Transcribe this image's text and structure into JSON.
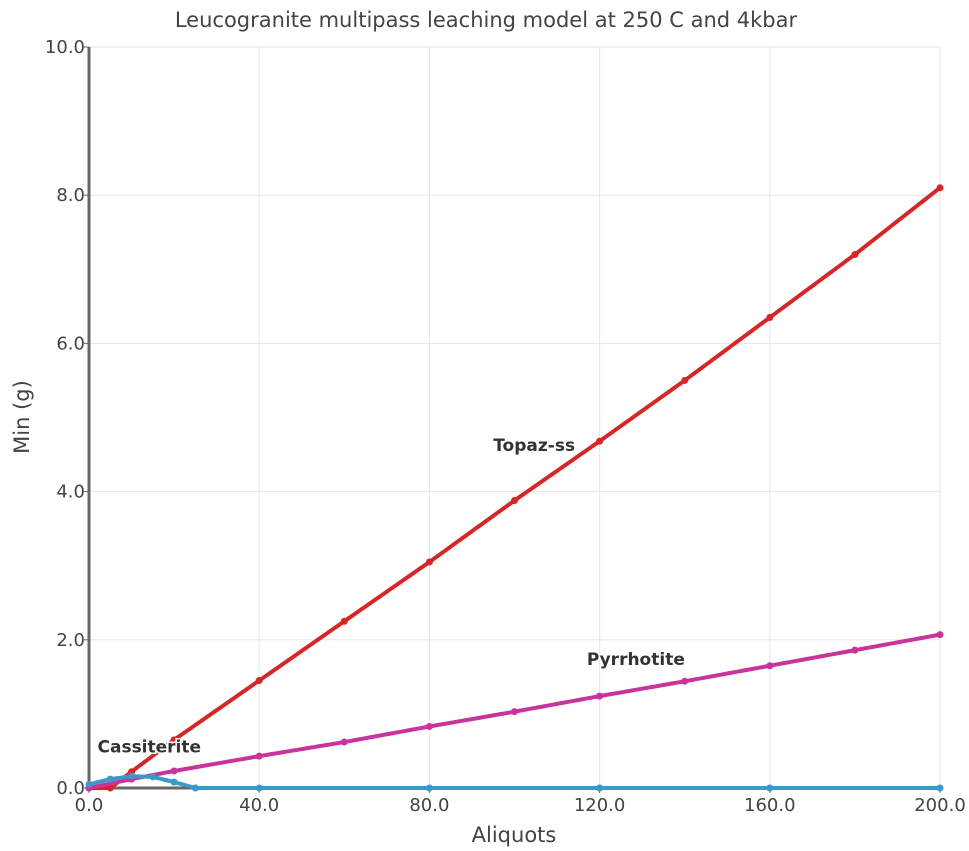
{
  "chart_data": {
    "type": "scatter",
    "title": "Leucogranite multipass leaching model at 250 C and 4kbar",
    "xlabel": "Aliquots",
    "ylabel": "Min (g)",
    "xlim": [
      0,
      200
    ],
    "ylim": [
      0,
      10
    ],
    "x_ticks": [
      "0.0",
      "40.0",
      "80.0",
      "120.0",
      "160.0",
      "200.0"
    ],
    "y_ticks": [
      "0.0",
      "2.0",
      "4.0",
      "6.0",
      "8.0",
      "10.0"
    ],
    "grid": true,
    "series": [
      {
        "name": "Topaz-ss",
        "color": "#d62728",
        "x": [
          0,
          5,
          10,
          20,
          40,
          60,
          80,
          100,
          120,
          140,
          160,
          180,
          200
        ],
        "y": [
          0.0,
          0.0,
          0.22,
          0.65,
          1.45,
          2.25,
          3.05,
          3.88,
          4.68,
          5.5,
          6.35,
          7.2,
          8.1
        ]
      },
      {
        "name": "Pyrrhotite",
        "color": "#c9349a",
        "x": [
          0,
          10,
          20,
          40,
          60,
          80,
          100,
          120,
          140,
          160,
          180,
          200
        ],
        "y": [
          0.0,
          0.12,
          0.23,
          0.43,
          0.62,
          0.83,
          1.03,
          1.24,
          1.44,
          1.65,
          1.86,
          2.07
        ]
      },
      {
        "name": "Cassiterite",
        "color": "#3a99c9",
        "x": [
          0,
          5,
          10,
          15,
          20,
          25,
          40,
          80,
          120,
          160,
          200
        ],
        "y": [
          0.05,
          0.12,
          0.16,
          0.15,
          0.08,
          0.0,
          0.0,
          0.0,
          0.0,
          0.0,
          0.0
        ]
      }
    ]
  }
}
